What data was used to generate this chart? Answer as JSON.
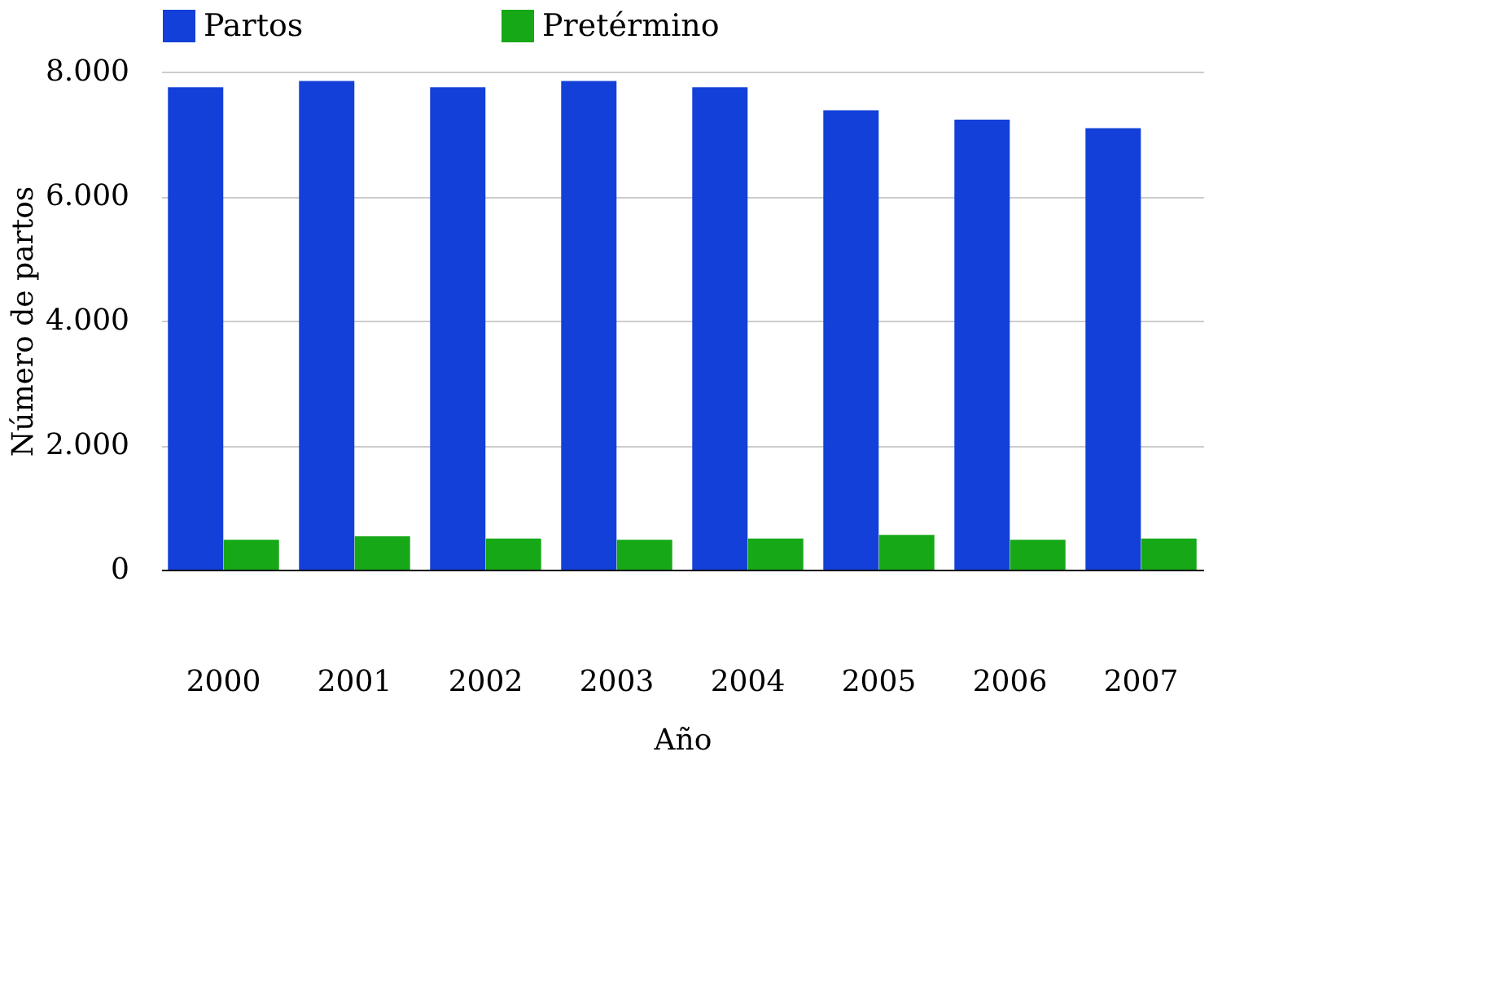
{
  "chart_data": {
    "type": "bar",
    "xlabel": "Año",
    "ylabel": "Número de partos",
    "categories": [
      "2000",
      "2001",
      "2002",
      "2003",
      "2004",
      "2005",
      "2006",
      "2007"
    ],
    "series": [
      {
        "name": "Partos",
        "color": "#1240d8",
        "values": [
          7750,
          7850,
          7750,
          7850,
          7750,
          7380,
          7230,
          7090
        ]
      },
      {
        "name": "Pretérmino",
        "color": "#17a817",
        "values": [
          480,
          535,
          500,
          480,
          500,
          560,
          480,
          500
        ]
      }
    ],
    "ylim": [
      0,
      8000
    ],
    "yticks": [
      {
        "value": 0,
        "label": "0"
      },
      {
        "value": 2000,
        "label": "2.000"
      },
      {
        "value": 4000,
        "label": "4.000"
      },
      {
        "value": 6000,
        "label": "6.000"
      },
      {
        "value": 8000,
        "label": "8.000"
      }
    ],
    "grid": "y",
    "legend": "top"
  }
}
